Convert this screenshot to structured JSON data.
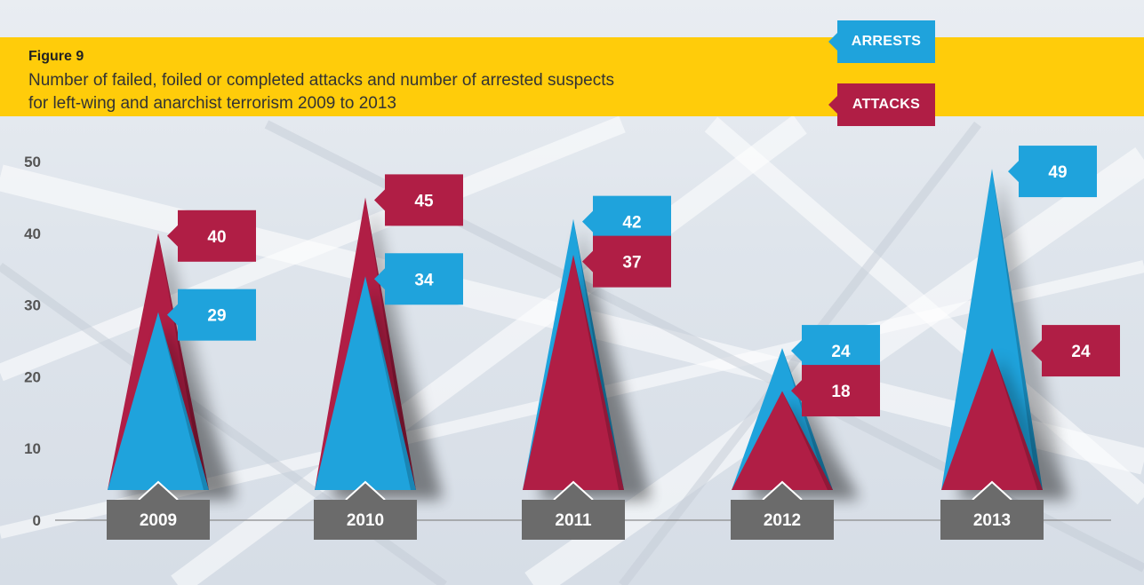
{
  "header": {
    "figure_label": "Figure 9",
    "title_line1": "Number of failed, foiled or completed attacks and number of arrested suspects",
    "title_line2": "for left-wing and anarchist terrorism 2009 to 2013"
  },
  "legend": {
    "arrests": "ARRESTS",
    "attacks": "ATTACKS"
  },
  "colors": {
    "arrests": "#1fa3dc",
    "attacks": "#b01e45",
    "year_box": "#6b6b6b",
    "banner": "#ffcc0a"
  },
  "chart_data": {
    "type": "area",
    "title": "Number of failed, foiled or completed attacks and number of arrested suspects for left-wing and anarchist terrorism 2009 to 2013",
    "categories": [
      "2009",
      "2010",
      "2011",
      "2012",
      "2013"
    ],
    "series": [
      {
        "name": "ARRESTS",
        "values": [
          29,
          34,
          42,
          24,
          49
        ]
      },
      {
        "name": "ATTACKS",
        "values": [
          40,
          45,
          37,
          18,
          24
        ]
      }
    ],
    "y_ticks": [
      0,
      10,
      20,
      30,
      40,
      50
    ],
    "ylim": [
      0,
      50
    ],
    "grid": false,
    "legend_position": "top-right"
  }
}
